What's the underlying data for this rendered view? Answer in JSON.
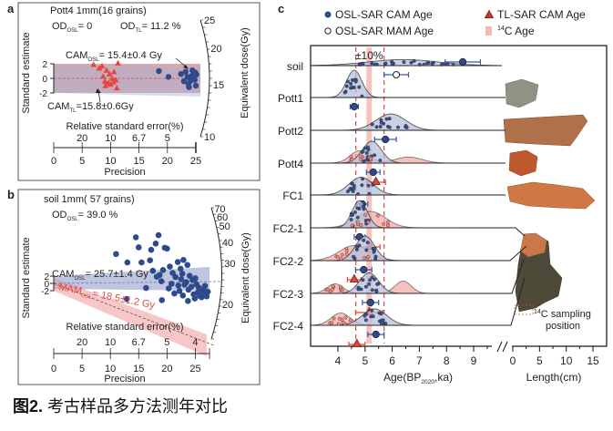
{
  "caption": {
    "label": "图2.",
    "text": " 考古样品多方法测年对比"
  },
  "chart_data": [
    {
      "panel": "a",
      "type": "scatter",
      "subtype": "radial plot",
      "title": "Pott4    1mm(16 grains)",
      "od_osl": "OD",
      "od_osl_sub": "OSL",
      "od_osl_val": "= 0",
      "od_tl": "OD",
      "od_tl_sub": "TL",
      "od_tl_val": "= 11.2 %",
      "ylabel": "Standard estimate",
      "y_ticks": [
        "2",
        "0",
        "-2"
      ],
      "rse_label": "Relative standard error(%)",
      "rse_ticks": [
        "20",
        "10",
        "6.7",
        "5"
      ],
      "xlabel": "Precision",
      "x_ticks": [
        "0",
        "5",
        "10",
        "15",
        "20",
        "25"
      ],
      "xlim": [
        0,
        25
      ],
      "arc_label": "Equivalent dose(Gy)",
      "arc_ticks": [
        "25",
        "20",
        "15",
        "10"
      ],
      "cam_osl": {
        "label": "CAM",
        "sub": "OSL",
        "value": "= 15.4±0.4 Gy"
      },
      "cam_tl": {
        "label": "CAM",
        "sub": "TL",
        "value": "=15.8±0.6Gy"
      },
      "series": [
        {
          "name": "OSL",
          "marker": "circle",
          "color": "#2e4a8c",
          "points": [
            [
              18.5,
              1.0
            ],
            [
              20.2,
              0.2
            ],
            [
              22.4,
              0.6
            ],
            [
              22.9,
              -0.4
            ],
            [
              23.2,
              0.9
            ],
            [
              23.5,
              0.2
            ],
            [
              23.7,
              -0.8
            ],
            [
              24.0,
              -0.4
            ],
            [
              24.2,
              0.3
            ],
            [
              24.4,
              1.1
            ],
            [
              24.6,
              0.6
            ],
            [
              24.8,
              -0.2
            ],
            [
              24.9,
              0.8
            ],
            [
              25.0,
              -1.0
            ],
            [
              25.1,
              0.5
            ],
            [
              23.8,
              -1.2
            ]
          ]
        },
        {
          "name": "TL",
          "marker": "triangle",
          "color": "#e8453c",
          "points": [
            [
              7.0,
              1.9
            ],
            [
              8.0,
              1.4
            ],
            [
              8.5,
              1.7
            ],
            [
              8.7,
              0.3
            ],
            [
              9.0,
              -0.4
            ],
            [
              9.3,
              1.1
            ],
            [
              9.6,
              -0.6
            ],
            [
              9.8,
              0.6
            ],
            [
              10.0,
              -0.8
            ],
            [
              10.3,
              0.0
            ],
            [
              10.6,
              0.9
            ],
            [
              10.9,
              -0.2
            ],
            [
              11.1,
              -1.3
            ],
            [
              11.3,
              2.1
            ],
            [
              9.1,
              -1.0
            ],
            [
              10.5,
              -0.5
            ]
          ]
        }
      ]
    },
    {
      "panel": "b",
      "type": "scatter",
      "subtype": "radial plot",
      "title": "soil  1mm( 57 grains)",
      "od_osl": "OD",
      "od_osl_sub": "OSL",
      "od_osl_val": "= 39.0 %",
      "ylabel": "Standard estimate",
      "y_ticks": [
        "2",
        "0",
        "-2"
      ],
      "rse_label": "Relative standard error(%)",
      "rse_ticks": [
        "20",
        "10",
        "6.7",
        "5",
        "4"
      ],
      "xlabel": "Precision",
      "x_ticks": [
        "0",
        "5",
        "10",
        "15",
        "20",
        "25"
      ],
      "xlim": [
        0,
        27.5
      ],
      "arc_label": "Equivalent dose(Gy)",
      "arc_ticks": [
        "70",
        "60",
        "50",
        "40",
        "30",
        "20"
      ],
      "cam_osl": {
        "label": "CAM",
        "sub": "OSL",
        "value": "= 25.7±1.4 Gy"
      },
      "mam_osl": {
        "label": "MAM",
        "sub": "OSL",
        "value": "= 18.5±1.2 Gy"
      },
      "series": [
        {
          "name": "OSL",
          "marker": "circle",
          "color": "#2e4a8c",
          "points": [
            [
              11,
              7
            ],
            [
              13,
              5
            ],
            [
              14.5,
              11
            ],
            [
              15,
              8.6
            ],
            [
              15.5,
              5
            ],
            [
              17,
              5.5
            ],
            [
              17.2,
              8
            ],
            [
              17.5,
              3
            ],
            [
              18,
              9.5
            ],
            [
              18.5,
              11.5
            ],
            [
              18.7,
              2
            ],
            [
              19,
              0.5
            ],
            [
              19.3,
              3.2
            ],
            [
              19.6,
              8.5
            ],
            [
              20,
              8.3
            ],
            [
              20.3,
              -1.2
            ],
            [
              20.5,
              4
            ],
            [
              21,
              2.5
            ],
            [
              21.5,
              1.5
            ],
            [
              22,
              -0.5
            ],
            [
              22.2,
              -1.8
            ],
            [
              22.4,
              3.5
            ],
            [
              22.5,
              1.0
            ],
            [
              22.7,
              2.3
            ],
            [
              22.9,
              5.6
            ],
            [
              23.1,
              -0.3
            ],
            [
              23.4,
              0.3
            ],
            [
              23.6,
              4.4
            ],
            [
              23.8,
              -1.5
            ],
            [
              24.0,
              1.8
            ],
            [
              24.3,
              -0.8
            ],
            [
              24.5,
              0.8
            ],
            [
              24.7,
              -2.6
            ],
            [
              25.0,
              1.2
            ],
            [
              25.2,
              -0.2
            ],
            [
              25.4,
              -2.2
            ],
            [
              25.6,
              -1.0
            ],
            [
              25.8,
              -3.0
            ],
            [
              26.0,
              -2.0
            ],
            [
              26.2,
              -1.5
            ],
            [
              26.4,
              -2.6
            ],
            [
              26.6,
              -1.8
            ],
            [
              26.8,
              -2.3
            ],
            [
              27.0,
              -3.1
            ],
            [
              27.2,
              -2.0
            ],
            [
              24.9,
              -3.6
            ],
            [
              23.7,
              -4.2
            ],
            [
              21.3,
              -2.4
            ],
            [
              19.1,
              -4.0
            ],
            [
              12.9,
              -3.7
            ],
            [
              16.3,
              -1.1
            ],
            [
              18.2,
              1.6
            ],
            [
              20.8,
              -0.1
            ],
            [
              21.9,
              5.1
            ],
            [
              22.8,
              -2.9
            ],
            [
              26.1,
              -3.3
            ],
            [
              26.7,
              -0.6
            ]
          ]
        }
      ]
    },
    {
      "panel": "c",
      "type": "scatter",
      "subtype": "ridgeline age comparison",
      "legend": [
        {
          "marker": "filled-circle",
          "label": "OSL-SAR CAM Age",
          "color": "#2e4a8c"
        },
        {
          "marker": "open-circle",
          "label": "OSL-SAR MAM Age",
          "color": "#222222"
        },
        {
          "marker": "triangle",
          "label": "TL-SAR CAM Age",
          "color": "#c9372c"
        },
        {
          "marker": "square",
          "label": "C Age",
          "sup": "14",
          "color": "#f4b7b3"
        }
      ],
      "legend_placement": "top",
      "xlabel": "Age(BP",
      "xlabel_sub": "2020",
      "xlabel_end": ",ka)",
      "x_ticks": [
        "4",
        "5",
        "6",
        "7",
        "8",
        "9"
      ],
      "xlim": [
        3.0,
        9.9
      ],
      "length_label": "Length(cm)",
      "length_ticks": [
        "0",
        "5",
        "10",
        "15"
      ],
      "c14_band": [
        5.05,
        5.25
      ],
      "ten_percent_lines": [
        4.66,
        5.7
      ],
      "ten_percent_label": "±10%",
      "c14_sampling_label_sup": "14",
      "c14_sampling_label": "C sampling",
      "c14_sampling_label2": "position",
      "samples": [
        {
          "name": "soil",
          "osl_cam": [
            8.6,
            0.65
          ],
          "osl_mam": [
            6.15,
            0.45
          ],
          "tl_cam": null,
          "osl_peak": 6.4,
          "osl_sd": 1.3,
          "osl_h": 0.22,
          "tl_peak": null
        },
        {
          "name": "Pott1",
          "osl_cam": [
            4.6,
            0.15
          ],
          "tl_cam": null,
          "osl_peak": 4.6,
          "osl_sd": 0.28,
          "osl_h": 1.0,
          "tl_peak": null
        },
        {
          "name": "Pott2",
          "osl_cam": [
            5.75,
            0.4
          ],
          "tl_cam": null,
          "osl_peak": 5.95,
          "osl_sd": 0.55,
          "osl_h": 0.6,
          "tl_peak": null
        },
        {
          "name": "Pott4",
          "osl_cam": [
            5.3,
            0.25
          ],
          "tl_cam": [
            5.4,
            0.35
          ],
          "osl_peak": 5.25,
          "osl_sd": 0.35,
          "osl_h": 0.8,
          "tl_peak": 4.8,
          "tl_sd": 0.35,
          "tl_h": 0.45,
          "tl_peak2": 6.6,
          "tl_sd2": 0.5,
          "tl_h2": 0.22
        },
        {
          "name": "FC1",
          "osl_cam": [
            4.9,
            0.2
          ],
          "tl_cam": null,
          "osl_peak": 4.85,
          "osl_sd": 0.45,
          "osl_h": 0.65,
          "tl_peak": null
        },
        {
          "name": "FC2-1",
          "osl_cam": [
            4.8,
            0.2
          ],
          "tl_cam": [
            5.2,
            0.35
          ],
          "osl_peak": 4.8,
          "osl_sd": 0.28,
          "osl_h": 1.0,
          "tl_peak": 5.2,
          "tl_sd": 0.55,
          "tl_h": 0.6
        },
        {
          "name": "FC2-2",
          "osl_cam": [
            4.95,
            0.3
          ],
          "tl_cam": [
            4.6,
            0.25
          ],
          "osl_peak": 5.0,
          "osl_sd": 0.35,
          "osl_h": 0.9,
          "tl_peak": 4.6,
          "tl_sd": 0.55,
          "tl_h": 0.55
        },
        {
          "name": "FC2-3",
          "osl_cam": [
            5.2,
            0.3
          ],
          "tl_cam": [
            5.15,
            0.5
          ],
          "osl_peak": 5.15,
          "osl_sd": 0.35,
          "osl_h": 0.75,
          "tl_peak": 3.9,
          "tl_sd": 0.3,
          "tl_h": 0.35,
          "tl_peak2": 6.4,
          "tl_sd2": 0.3,
          "tl_h2": 0.45
        },
        {
          "name": "FC2-4",
          "osl_cam": [
            5.4,
            0.3
          ],
          "tl_cam": [
            4.7,
            0.3
          ],
          "osl_peak": 5.35,
          "osl_sd": 0.45,
          "osl_h": 0.6,
          "tl_peak": 4.1,
          "tl_sd": 0.35,
          "tl_h": 0.45
        }
      ]
    }
  ]
}
